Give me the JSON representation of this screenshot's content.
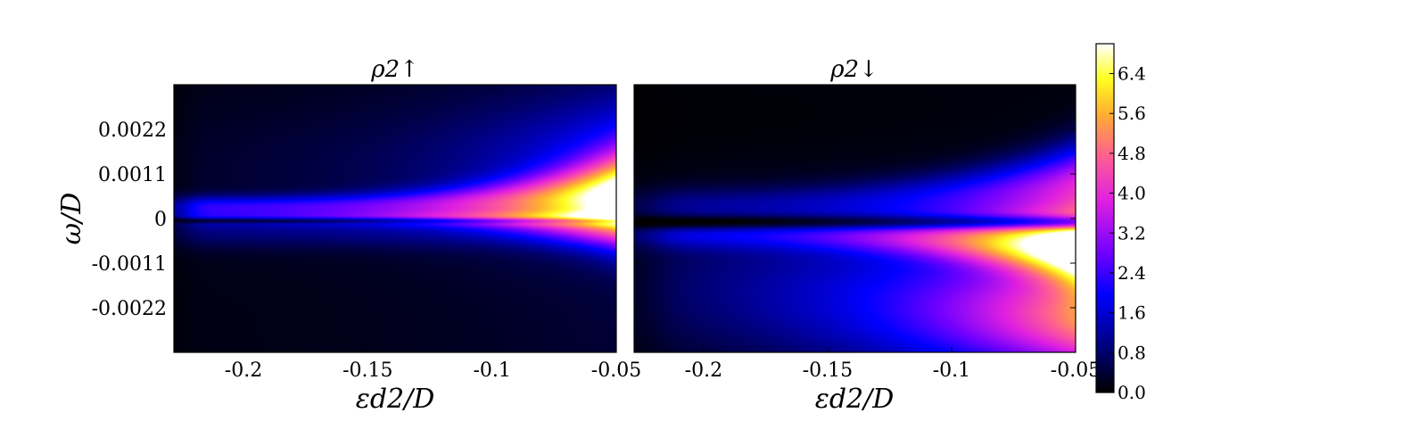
{
  "chart_data": [
    {
      "type": "heatmap",
      "title": "ρ2↑",
      "xlabel": "εd2/D",
      "ylabel": "ω/D",
      "xlim": [
        -0.228,
        -0.05
      ],
      "ylim": [
        -0.0033,
        0.0033
      ],
      "x_ticks": [
        -0.2,
        -0.15,
        -0.1,
        -0.05
      ],
      "x_tick_labels": [
        "-0.2",
        "-0.15",
        "-0.1",
        "-0.05"
      ],
      "y_ticks": [
        0.0022,
        0.0011,
        0,
        -0.0011,
        -0.0022
      ],
      "y_tick_labels": [
        "0.0022",
        "0.0011",
        "0",
        "-0.0011",
        "-0.0022"
      ],
      "features": [
        {
          "omega": 0.0003,
          "peak_density_at_x_min": 2.2,
          "peak_density_at_x_max": 5.9,
          "description": "band just above omega=0"
        },
        {
          "omega": 0.0,
          "peak_density_at_x_min": 1.9,
          "peak_density_at_x_max": 2.6,
          "description": "band at omega=0"
        }
      ]
    },
    {
      "type": "heatmap",
      "title": "ρ2↓",
      "xlabel": "εd2/D",
      "xlim": [
        -0.228,
        -0.05
      ],
      "ylim": [
        -0.0033,
        0.0033
      ],
      "x_ticks": [
        -0.2,
        -0.15,
        -0.1,
        -0.05
      ],
      "x_tick_labels": [
        "-0.2",
        "-0.15",
        "-0.1",
        "-0.05"
      ],
      "features": [
        {
          "omega": 0.0003,
          "peak_density_at_x_min": 1.6,
          "peak_density_at_x_max": 4.2,
          "description": "upper branch"
        },
        {
          "omega": -0.0005,
          "peak_density_at_x_min": 1.4,
          "peak_density_at_x_max": 6.6,
          "description": "lower branch"
        },
        {
          "omega": -0.0028,
          "peak_density_at_x_min": 0.8,
          "peak_density_at_x_max": 3.6,
          "description": "broad tail at negative omega"
        },
        {
          "omega": -0.0002,
          "peak_density_at_x_min": 0.1,
          "peak_density_at_x_max": 0.1,
          "description": "dip near omega=0"
        }
      ]
    }
  ],
  "colorbar": {
    "min": 0.0,
    "max": 7.0,
    "ticks": [
      0.0,
      0.8,
      1.6,
      2.4,
      3.2,
      4.0,
      4.8,
      5.6,
      6.4
    ],
    "tick_labels": [
      "0.0",
      "0.8",
      "1.6",
      "2.4",
      "3.2",
      "4.0",
      "4.8",
      "5.6",
      "6.4"
    ],
    "colormap": "gnuplot2",
    "colors": [
      "#000000",
      "#0000ff",
      "#8000ff",
      "#ff40c0",
      "#ffd020",
      "#ffff80",
      "#ffffff"
    ]
  }
}
